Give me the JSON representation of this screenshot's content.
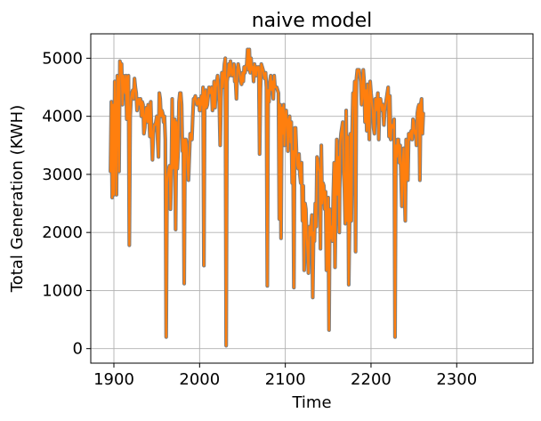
{
  "chart_data": {
    "type": "line",
    "title": "naive model",
    "xlabel": "Time",
    "ylabel": "Total Generation (KWH)",
    "xlim": [
      1873,
      2389
    ],
    "ylim": [
      -250,
      5420
    ],
    "xticks": [
      1900,
      2000,
      2100,
      2200,
      2300
    ],
    "yticks": [
      0,
      1000,
      2000,
      3000,
      4000,
      5000
    ],
    "grid": true,
    "colors": {
      "actual": "#7f7f7f",
      "predicted": "#ff7f0e"
    },
    "x_start": 1896,
    "x_step": 1,
    "series": [
      {
        "style": "actual",
        "values": [
          3050,
          4250,
          2600,
          4200,
          2650,
          4600,
          3800,
          2650,
          4700,
          4600,
          3050,
          4950,
          4900,
          4900,
          4200,
          4700,
          4550,
          4400,
          4700,
          3950,
          4650,
          4700,
          1780,
          4000,
          4300,
          4400,
          4450,
          4300,
          4650,
          4500,
          4400,
          4100,
          4250,
          4300,
          4200,
          4300,
          4000,
          4250,
          4200,
          3700,
          3800,
          4100,
          4150,
          3900,
          4200,
          4000,
          3650,
          4250,
          3700,
          3250,
          3700,
          3850,
          3850,
          3900,
          4000,
          3600,
          3300,
          4400,
          4300,
          4000,
          4100,
          4050,
          3900,
          4000,
          3600,
          200,
          2850,
          3000,
          3100,
          3150,
          2400,
          3000,
          4300,
          3100,
          3850,
          3950,
          2050,
          3900,
          3100,
          3400,
          4250,
          4400,
          4400,
          4200,
          3400,
          3600,
          1120,
          3600,
          3600,
          3500,
          3100,
          2900,
          3300,
          3700,
          3650,
          3600,
          4000,
          4300,
          4300,
          4350,
          4250,
          4200,
          4250,
          4300,
          4100,
          4100,
          4350,
          4200,
          4500,
          1430,
          4400,
          4450,
          4150,
          4200,
          4350,
          4500,
          4400,
          4400,
          4500,
          4100,
          4200,
          4600,
          4150,
          4500,
          4600,
          4700,
          4500,
          4200,
          3500,
          4300,
          4750,
          4500,
          4700,
          4900,
          5000,
          50,
          4600,
          4700,
          4900,
          4700,
          4950,
          4800,
          4700,
          4750,
          4900,
          4600,
          4600,
          4300,
          4800,
          4900,
          4800,
          4700,
          4600,
          4550,
          4750,
          4600,
          4850,
          4750,
          4850,
          4900,
          5150,
          4800,
          5150,
          4750,
          5000,
          4800,
          4850,
          4600,
          4900,
          4800,
          4700,
          4850,
          4800,
          4850,
          3350,
          4450,
          4900,
          4850,
          4800,
          4700,
          4650,
          4750,
          4500,
          1080,
          4450,
          4250,
          4600,
          4700,
          4450,
          4600,
          4300,
          4700,
          4500,
          4500,
          4500,
          4450,
          4400,
          2230,
          4200,
          1900,
          4150,
          3700,
          4200,
          3500,
          3950,
          4100,
          3850,
          3400,
          3950,
          4000,
          3550,
          3900,
          2850,
          3400,
          1050,
          3800,
          3800,
          3400,
          3150,
          3100,
          3350,
          3000,
          2850,
          3200,
          2200,
          2800,
          1350,
          2500,
          2400,
          1900,
          1650,
          1300,
          2100,
          1950,
          2100,
          2300,
          880,
          2000,
          1850,
          2500,
          2100,
          3300,
          3250,
          3100,
          3050,
          1720,
          3500,
          2500,
          2850,
          2800,
          2400,
          2700,
          1350,
          1950,
          2600,
          320,
          2400,
          1900,
          2100,
          1850,
          2650,
          3200,
          1400,
          2800,
          3600,
          2650,
          3300,
          2000,
          3500,
          3700,
          3800,
          3900,
          3050,
          2750,
          2150,
          4100,
          2200,
          3650,
          1100,
          2150,
          3700,
          2200,
          3750,
          4400,
          4200,
          4600,
          1670,
          4650,
          4800,
          4800,
          4800,
          4700,
          4600,
          4200,
          4300,
          4800,
          4600,
          3900,
          4450,
          3750,
          4550,
          4100,
          3600,
          4600,
          4400,
          4250,
          4100,
          3800,
          3700,
          4300,
          4100,
          4250,
          4400,
          3600,
          4300,
          4300,
          4200,
          4100,
          4200,
          3850,
          4100,
          4200,
          4300,
          4400,
          4500,
          3650,
          4350,
          3600,
          3850,
          3850,
          3800,
          3950,
          200,
          3500,
          3300,
          3600,
          3600,
          3200,
          3500,
          3000,
          2450,
          3200,
          3450,
          2800,
          2200,
          3600,
          3050,
          2900,
          3700,
          3600,
          3700,
          3750,
          3600,
          3950,
          3900,
          3700,
          3750,
          3500,
          4050,
          4150,
          4200,
          2900,
          4200,
          4300,
          3700,
          4050
        ]
      },
      {
        "style": "predicted",
        "values": [
          3050,
          4250,
          2600,
          4200,
          2650,
          4600,
          3800,
          2650,
          4700,
          4600,
          3050,
          4950,
          4900,
          4900,
          4200,
          4700,
          4550,
          4400,
          4700,
          3950,
          4650,
          4700,
          1780,
          4000,
          4300,
          4400,
          4450,
          4300,
          4650,
          4500,
          4400,
          4100,
          4250,
          4300,
          4200,
          4300,
          4000,
          4250,
          4200,
          3700,
          3800,
          4100,
          4150,
          3900,
          4200,
          4000,
          3650,
          4250,
          3700,
          3250,
          3700,
          3850,
          3850,
          3900,
          4000,
          3600,
          3300,
          4400,
          4300,
          4000,
          4100,
          4050,
          3900,
          4000,
          3600,
          200,
          2850,
          3000,
          3100,
          3150,
          2400,
          3000,
          4300,
          3100,
          3850,
          3950,
          2050,
          3900,
          3100,
          3400,
          4250,
          4400,
          4400,
          4200,
          3400,
          3600,
          1120,
          3600,
          3600,
          3500,
          3100,
          2900,
          3300,
          3700,
          3650,
          3600,
          4000,
          4300,
          4300,
          4350,
          4250,
          4200,
          4250,
          4300,
          4100,
          4100,
          4350,
          4200,
          4500,
          1430,
          4400,
          4450,
          4150,
          4200,
          4350,
          4500,
          4400,
          4400,
          4500,
          4100,
          4200,
          4600,
          4150,
          4500,
          4600,
          4700,
          4500,
          4200,
          3500,
          4300,
          4750,
          4500,
          4700,
          4900,
          5000,
          50,
          4600,
          4700,
          4900,
          4700,
          4950,
          4800,
          4700,
          4750,
          4900,
          4600,
          4600,
          4300,
          4800,
          4900,
          4800,
          4700,
          4600,
          4550,
          4750,
          4600,
          4850,
          4750,
          4850,
          4900,
          5150,
          4800,
          5150,
          4750,
          5000,
          4800,
          4850,
          4600,
          4900,
          4800,
          4700,
          4850,
          4800,
          4850,
          3350,
          4450,
          4900,
          4850,
          4800,
          4700,
          4650,
          4750,
          4500,
          1080,
          4450,
          4250,
          4600,
          4700,
          4450,
          4600,
          4300,
          4700,
          4500,
          4500,
          4500,
          4450,
          4400,
          2230,
          4200,
          1900,
          4150,
          3700,
          4200,
          3500,
          3950,
          4100,
          3850,
          3400,
          3950,
          4000,
          3550,
          3900,
          2850,
          3400,
          1050,
          3800,
          3800,
          3400,
          3150,
          3100,
          3350,
          3000,
          2850,
          3200,
          2200,
          2800,
          1350,
          2500,
          2400,
          1900,
          1650,
          1300,
          2100,
          1950,
          2100,
          2300,
          880,
          2000,
          1850,
          2500,
          2100,
          3300,
          3250,
          3100,
          3050,
          1720,
          3500,
          2500,
          2850,
          2800,
          2400,
          2700,
          1350,
          1950,
          2600,
          320,
          2400,
          1900,
          2100,
          1850,
          2650,
          3200,
          1400,
          2800,
          3600,
          2650,
          3300,
          2000,
          3500,
          3700,
          3800,
          3900,
          3050,
          2750,
          2150,
          4100,
          2200,
          3650,
          1100,
          2150,
          3700,
          2200,
          3750,
          4400,
          4200,
          4600,
          1670,
          4650,
          4800,
          4800,
          4800,
          4700,
          4600,
          4200,
          4300,
          4800,
          4600,
          3900,
          4450,
          3750,
          4550,
          4100,
          3600,
          4600,
          4400,
          4250,
          4100,
          3800,
          3700,
          4300,
          4100,
          4250,
          4400,
          3600,
          4300,
          4300,
          4200,
          4100,
          4200,
          3850,
          4100,
          4200,
          4300,
          4400,
          4500,
          3650,
          4350,
          3600,
          3850,
          3850,
          3800,
          3950,
          200,
          3500,
          3300,
          3600,
          3600,
          3200,
          3500,
          3000,
          2450,
          3200,
          3450,
          2800,
          2200,
          3600,
          3050,
          2900,
          3700,
          3600,
          3700,
          3750,
          3600,
          3950,
          3900,
          3700,
          3750,
          3500,
          4050,
          4150,
          4200,
          2900,
          4200,
          4300,
          3700,
          4050
        ]
      }
    ]
  }
}
